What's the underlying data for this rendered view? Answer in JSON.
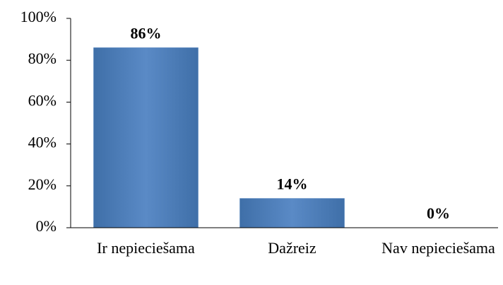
{
  "chart_data": {
    "type": "bar",
    "categories": [
      "Ir nepieciešama",
      "Dažreiz",
      "Nav nepieciešama"
    ],
    "values": [
      86,
      14,
      0
    ],
    "value_labels": [
      "86%",
      "14%",
      "0%"
    ],
    "color": "#4f81bd",
    "ylim": [
      0,
      100
    ],
    "yticks": [
      {
        "value": 0,
        "label": "0%"
      },
      {
        "value": 20,
        "label": "20%"
      },
      {
        "value": 40,
        "label": "40%"
      },
      {
        "value": 60,
        "label": "60%"
      },
      {
        "value": 80,
        "label": "80%"
      },
      {
        "value": 100,
        "label": "100%"
      }
    ],
    "grid": false
  }
}
